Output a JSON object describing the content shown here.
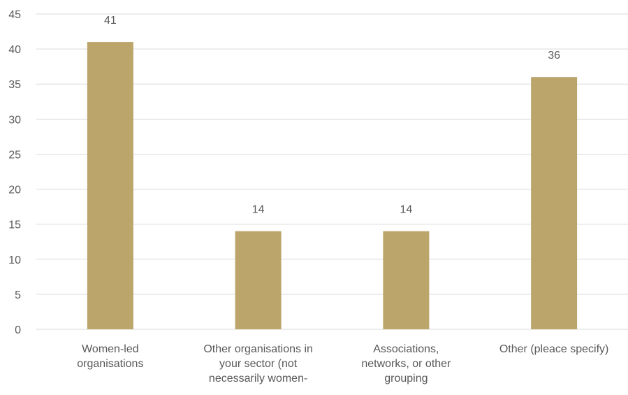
{
  "chart_data": {
    "type": "bar",
    "categories": [
      [
        "Women-led",
        "organisations"
      ],
      [
        "Other organisations in",
        "your sector (not",
        "necessarily women-"
      ],
      [
        "Associations,",
        "networks, or other",
        "grouping"
      ],
      [
        "Other (pleace specify)"
      ]
    ],
    "values": [
      41,
      14,
      14,
      36
    ],
    "data_labels": [
      "41",
      "14",
      "14",
      "36"
    ],
    "ylim": [
      0,
      45
    ],
    "yticks": [
      "0",
      "5",
      "10",
      "15",
      "20",
      "25",
      "30",
      "35",
      "40",
      "45"
    ],
    "grid": true,
    "bar_color": "#BBA56B",
    "grid_color": "#D9D9D9",
    "text_color": "#595959",
    "title": "",
    "xlabel": "",
    "ylabel": ""
  }
}
